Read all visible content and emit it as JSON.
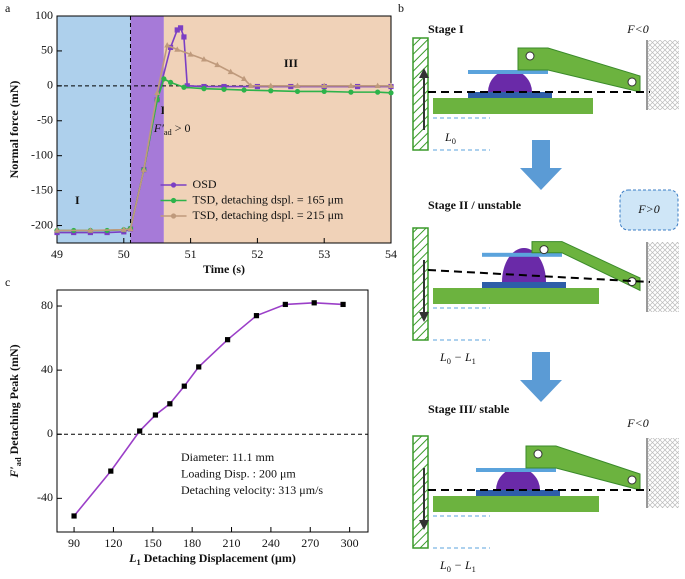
{
  "chart_data": [
    {
      "type": "line",
      "panel": "a",
      "x_label": "Time (s)",
      "y_label": "Normal force (mN)",
      "xlim": [
        49,
        54
      ],
      "xticks": [
        49,
        50,
        51,
        52,
        53,
        54
      ],
      "ylim": [
        -225,
        100
      ],
      "yticks": [
        -200,
        -150,
        -100,
        -50,
        0,
        50,
        100
      ],
      "reference_lines": {
        "y": [
          0
        ],
        "x": [
          50.1
        ]
      },
      "regions": [
        {
          "label": "I",
          "x": [
            49,
            50.1
          ],
          "color": "#aed0ec"
        },
        {
          "label": "II",
          "x": [
            50.1,
            50.6
          ],
          "color": "#a67ad8"
        },
        {
          "label": "III",
          "x": [
            50.6,
            54
          ],
          "color": "#f0d2b8"
        }
      ],
      "annotation": [
        "F′",
        "ad",
        " > 0"
      ],
      "legend": "lower center",
      "series": [
        {
          "name": "OSD",
          "color": "#7b3fc4",
          "marker": "square",
          "x": [
            49,
            49.25,
            49.5,
            49.75,
            50,
            50.1,
            50.3,
            50.5,
            50.7,
            50.8,
            50.85,
            50.9,
            50.95,
            51.2,
            51.5,
            52,
            52.5,
            53,
            53.5,
            54
          ],
          "values": [
            -210,
            -210,
            -210,
            -210,
            -209,
            -205,
            -120,
            -20,
            55,
            80,
            83,
            70,
            0,
            -1,
            -1,
            -1,
            -1,
            -1,
            -1,
            -1
          ]
        },
        {
          "name": "TSD, detaching dspl. = 165 μm",
          "color": "#2db34a",
          "marker": "circle",
          "x": [
            49,
            49.25,
            49.5,
            49.75,
            50,
            50.1,
            50.3,
            50.5,
            50.6,
            50.7,
            50.9,
            51.2,
            51.5,
            51.8,
            52.2,
            52.6,
            53,
            53.4,
            53.8,
            54
          ],
          "values": [
            -207,
            -207,
            -207,
            -207,
            -206,
            -204,
            -120,
            -20,
            10,
            5,
            -2,
            -4,
            -5,
            -6,
            -7,
            -8,
            -8,
            -9,
            -9,
            -10
          ]
        },
        {
          "name": "TSD, detaching dspl. = 215 μm",
          "color": "#bf9a7c",
          "marker": "triangle",
          "x": [
            49,
            49.5,
            50,
            50.1,
            50.3,
            50.5,
            50.65,
            50.8,
            51,
            51.2,
            51.4,
            51.6,
            51.8,
            51.9,
            52.2,
            52.6,
            53,
            53.4,
            53.8,
            54
          ],
          "values": [
            -207,
            -207,
            -206,
            -205,
            -120,
            -10,
            58,
            52,
            45,
            38,
            30,
            20,
            10,
            0,
            0,
            0,
            0,
            0,
            0,
            0
          ]
        }
      ]
    },
    {
      "type": "line",
      "panel": "c",
      "x_label": [
        "L",
        "1",
        " Detaching Displacement (μm)"
      ],
      "y_label": [
        "F′",
        "ad",
        " Detaching Peak (mN)"
      ],
      "xlim": [
        77,
        314
      ],
      "xticks": [
        90,
        120,
        150,
        180,
        210,
        240,
        270,
        300
      ],
      "ylim": [
        -61,
        90
      ],
      "yticks": [
        -40,
        0,
        40,
        80
      ],
      "reference_lines": {
        "y": [
          0
        ],
        "x": []
      },
      "notes": [
        "Diameter: 11.1 mm",
        "Loading Disp. : 200 μm",
        "Detaching velocity: 313 μm/s"
      ],
      "series": [
        {
          "color": "#9b3fc8",
          "marker": "square",
          "marker_color": "#000000",
          "x": [
            90,
            118,
            140,
            152,
            163,
            174,
            185,
            207,
            229,
            251,
            273,
            295
          ],
          "values": [
            -51,
            -23,
            2,
            12,
            19,
            30,
            42,
            59,
            74,
            81,
            82,
            81
          ]
        }
      ]
    }
  ],
  "diagram": {
    "panel": "b",
    "stages": [
      {
        "title": "Stage I",
        "force": "F<0",
        "length": [
          "L",
          "0"
        ]
      },
      {
        "title": "Stage II / unstable",
        "force": "F>0",
        "length": [
          "L",
          "0",
          " − L",
          "1"
        ]
      },
      {
        "title": "Stage III/ stable",
        "force": "F<0",
        "length": [
          "L",
          "0",
          " − L",
          "1"
        ]
      }
    ]
  }
}
